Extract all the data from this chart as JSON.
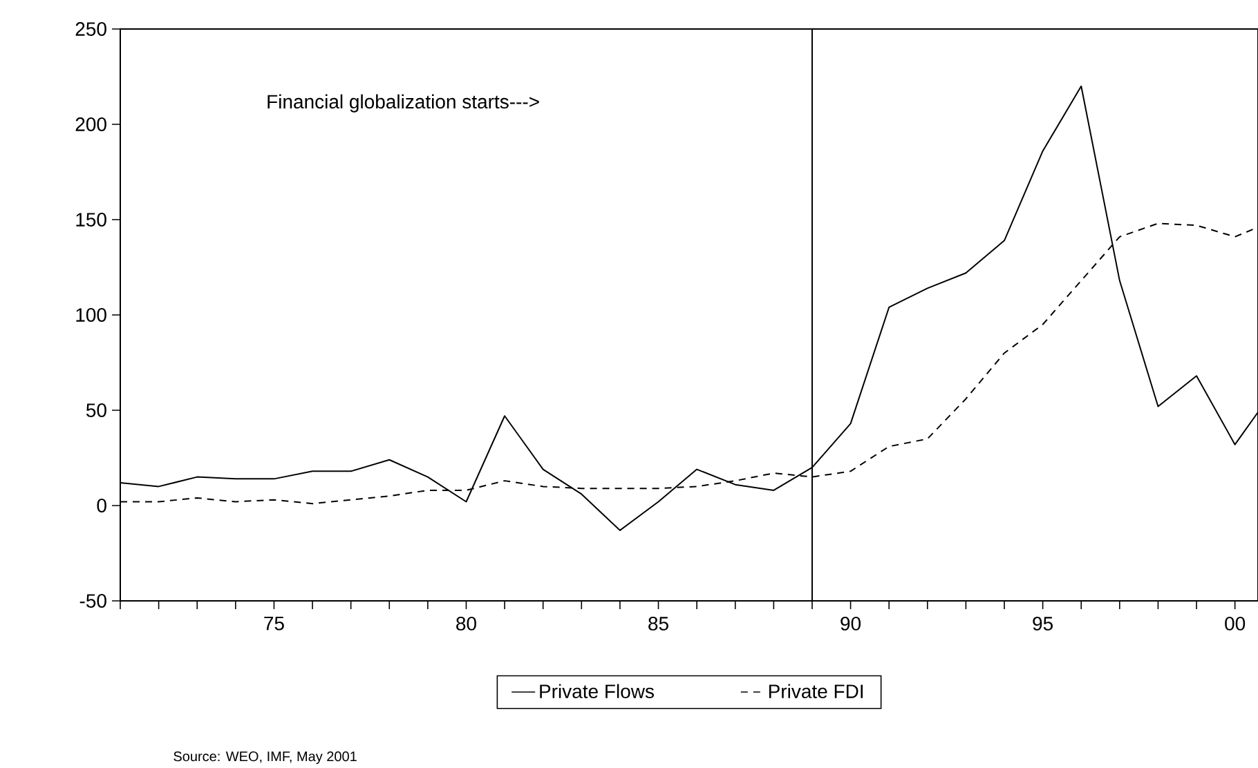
{
  "chart_data": {
    "type": "line",
    "x": [
      1971,
      1972,
      1973,
      1974,
      1975,
      1976,
      1977,
      1978,
      1979,
      1980,
      1981,
      1982,
      1983,
      1984,
      1985,
      1986,
      1987,
      1988,
      1989,
      1990,
      1991,
      1992,
      1993,
      1994,
      1995,
      1996,
      1997,
      1998,
      1999,
      2000,
      2000.6
    ],
    "series": [
      {
        "name": "Private Flows",
        "color": "#000000",
        "line_style": "solid",
        "values": [
          12,
          10,
          15,
          14,
          14,
          18,
          18,
          24,
          15,
          2,
          47,
          19,
          6,
          -13,
          2,
          19,
          11,
          8,
          20,
          43,
          104,
          114,
          122,
          139,
          186,
          220,
          118,
          52,
          68,
          32,
          49
        ]
      },
      {
        "name": "Private FDI",
        "color": "#000000",
        "line_style": "dashed",
        "values": [
          2,
          2,
          4,
          2,
          3,
          1,
          3,
          5,
          8,
          8,
          13,
          10,
          9,
          9,
          9,
          10,
          13,
          17,
          15,
          18,
          31,
          35,
          56,
          80,
          95,
          118,
          141,
          148,
          147,
          141,
          146
        ]
      }
    ],
    "xlim": [
      1971,
      2000.6
    ],
    "xticks": [
      {
        "value": 1971,
        "label": null
      },
      {
        "value": 1972,
        "label": null
      },
      {
        "value": 1973,
        "label": null
      },
      {
        "value": 1974,
        "label": null
      },
      {
        "value": 1975,
        "label": "75"
      },
      {
        "value": 1976,
        "label": null
      },
      {
        "value": 1977,
        "label": null
      },
      {
        "value": 1978,
        "label": null
      },
      {
        "value": 1979,
        "label": null
      },
      {
        "value": 1980,
        "label": "80"
      },
      {
        "value": 1981,
        "label": null
      },
      {
        "value": 1982,
        "label": null
      },
      {
        "value": 1983,
        "label": null
      },
      {
        "value": 1984,
        "label": null
      },
      {
        "value": 1985,
        "label": "85"
      },
      {
        "value": 1986,
        "label": null
      },
      {
        "value": 1987,
        "label": null
      },
      {
        "value": 1988,
        "label": null
      },
      {
        "value": 1989,
        "label": null
      },
      {
        "value": 1990,
        "label": "90"
      },
      {
        "value": 1991,
        "label": null
      },
      {
        "value": 1992,
        "label": null
      },
      {
        "value": 1993,
        "label": null
      },
      {
        "value": 1994,
        "label": null
      },
      {
        "value": 1995,
        "label": "95"
      },
      {
        "value": 1996,
        "label": null
      },
      {
        "value": 1997,
        "label": null
      },
      {
        "value": 1998,
        "label": null
      },
      {
        "value": 1999,
        "label": null
      },
      {
        "value": 2000,
        "label": "00"
      }
    ],
    "ylim": [
      -50,
      250
    ],
    "yticks": [
      -50,
      0,
      50,
      100,
      150,
      200,
      250
    ],
    "ref_lines": [
      {
        "axis": "x",
        "value": 1989
      }
    ],
    "annotations": [
      "Financial globalization starts--->",
      "Source:  WEO, IMF, May 2001"
    ],
    "legend": "bottom",
    "grid": false,
    "marker": "none"
  }
}
